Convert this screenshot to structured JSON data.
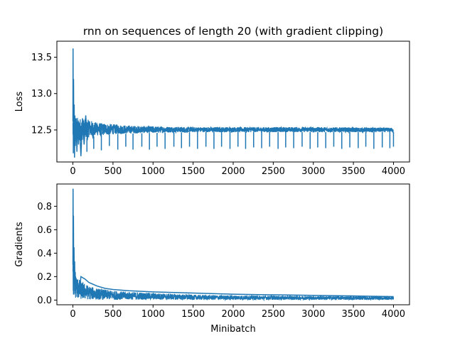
{
  "figure": {
    "title": "rnn on sequences of length 20 (with gradient clipping)",
    "line_color": "#1f77b4"
  },
  "chart_data": [
    {
      "type": "line",
      "title": "rnn on sequences of length 20 (with gradient clipping)",
      "xlabel": "",
      "ylabel": "Loss",
      "xlim": [
        -200,
        4200
      ],
      "ylim": [
        12.06,
        13.72
      ],
      "xticks": [
        0,
        500,
        1000,
        1500,
        2000,
        2500,
        3000,
        3500,
        4000
      ],
      "yticks": [
        12.5,
        13.0,
        13.5
      ],
      "ytick_labels": [
        "12.5",
        "13.0",
        "13.5"
      ],
      "grid": false,
      "series": [
        {
          "color": "#1f77b4",
          "x": [
            0,
            2,
            5,
            8,
            12,
            16,
            20,
            25,
            30,
            40,
            50,
            60,
            70,
            80,
            90,
            100,
            120,
            140,
            160,
            180,
            200,
            250,
            300,
            350,
            400,
            450,
            500,
            600,
            700,
            800,
            900,
            1000,
            1200,
            1400,
            1600,
            1800,
            2000,
            2500,
            3000,
            3500,
            4000
          ],
          "values": [
            12.62,
            13.62,
            12.18,
            13.2,
            12.3,
            12.85,
            12.12,
            12.7,
            12.28,
            12.66,
            12.2,
            12.64,
            12.3,
            12.6,
            12.38,
            12.14,
            12.66,
            12.3,
            12.7,
            12.36,
            12.62,
            12.4,
            12.58,
            12.42,
            12.56,
            12.44,
            12.55,
            12.45,
            12.54,
            12.46,
            12.53,
            12.47,
            12.53,
            12.47,
            12.52,
            12.48,
            12.52,
            12.48,
            12.52,
            12.48,
            12.5
          ]
        }
      ],
      "dips": {
        "x": [
          175,
          260,
          355,
          455,
          560,
          660,
          750,
          860,
          955,
          1050,
          1150,
          1260,
          1355,
          1455,
          1555,
          1660,
          1760,
          1855,
          1960,
          2060,
          2155,
          2255,
          2355,
          2455,
          2560,
          2655,
          2755,
          2860,
          2960,
          3055,
          3155,
          3255,
          3355,
          3455,
          3560,
          3655,
          3755,
          3860,
          3955,
          4000
        ],
        "values": [
          12.2,
          12.24,
          12.22,
          12.28,
          12.23,
          12.27,
          12.23,
          12.27,
          12.23,
          12.27,
          12.24,
          12.27,
          12.25,
          12.27,
          12.24,
          12.27,
          12.24,
          12.27,
          12.24,
          12.27,
          12.24,
          12.26,
          12.25,
          12.27,
          12.24,
          12.26,
          12.25,
          12.27,
          12.24,
          12.26,
          12.25,
          12.27,
          12.24,
          12.26,
          12.25,
          12.27,
          12.24,
          12.26,
          12.25,
          12.27
        ]
      },
      "band": {
        "x": [
          0,
          50,
          100,
          200,
          300,
          500,
          700,
          1000,
          1500,
          2000,
          3000,
          4000
        ],
        "low": [
          12.3,
          12.3,
          12.35,
          12.4,
          12.42,
          12.44,
          12.45,
          12.46,
          12.47,
          12.47,
          12.47,
          12.47
        ],
        "high": [
          12.75,
          12.68,
          12.66,
          12.64,
          12.6,
          12.58,
          12.56,
          12.55,
          12.54,
          12.54,
          12.54,
          12.53
        ]
      }
    },
    {
      "type": "line",
      "xlabel": "Minibatch",
      "ylabel": "Gradients",
      "xlim": [
        -200,
        4200
      ],
      "ylim": [
        -0.04,
        0.99
      ],
      "xticks": [
        0,
        500,
        1000,
        1500,
        2000,
        2500,
        3000,
        3500,
        4000
      ],
      "yticks": [
        0.0,
        0.2,
        0.4,
        0.6,
        0.8
      ],
      "ytick_labels": [
        "0.0",
        "0.2",
        "0.4",
        "0.6",
        "0.8"
      ],
      "grid": false,
      "series": [
        {
          "color": "#1f77b4",
          "x": [
            0,
            2,
            4,
            7,
            10,
            14,
            18,
            22,
            26,
            30,
            40,
            60,
            80,
            100,
            150,
            200,
            300,
            400,
            500,
            700,
            1000,
            1500,
            2000,
            3000,
            4000
          ],
          "values": [
            0.3,
            0.95,
            0.5,
            0.72,
            0.2,
            0.45,
            0.15,
            0.33,
            0.08,
            0.2,
            0.1,
            0.14,
            0.06,
            0.2,
            0.18,
            0.15,
            0.12,
            0.1,
            0.09,
            0.08,
            0.07,
            0.06,
            0.05,
            0.04,
            0.03
          ]
        }
      ],
      "band": {
        "x": [
          0,
          50,
          100,
          200,
          300,
          500,
          700,
          1000,
          1500,
          2000,
          3000,
          4000
        ],
        "low": [
          0.02,
          0.01,
          0.005,
          0.005,
          0.003,
          0.003,
          0.003,
          0.003,
          0.002,
          0.002,
          0.002,
          0.002
        ],
        "high": [
          0.35,
          0.2,
          0.16,
          0.12,
          0.1,
          0.08,
          0.07,
          0.06,
          0.045,
          0.04,
          0.035,
          0.03
        ]
      }
    }
  ]
}
